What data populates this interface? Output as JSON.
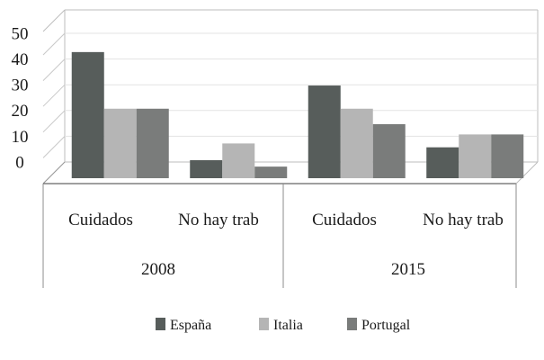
{
  "chart_data": {
    "type": "bar",
    "title": "",
    "xlabel": "",
    "ylabel": "",
    "ylim": [
      0,
      50
    ],
    "yticks": [
      "50",
      "40",
      "30",
      "20",
      "10",
      "0"
    ],
    "groups": [
      {
        "label": "2008",
        "categories": [
          "Cuidados",
          "No hay trab"
        ]
      },
      {
        "label": "2015",
        "categories": [
          "Cuidados",
          "No hay trab"
        ]
      }
    ],
    "categories": [
      "Cuidados",
      "No hay trab",
      "Cuidados",
      "No hay trab"
    ],
    "series": [
      {
        "name": "España",
        "color": "#575d5b",
        "values": [
          49,
          7,
          36,
          12
        ]
      },
      {
        "name": "Italia",
        "color": "#b5b5b5",
        "values": [
          27,
          13.5,
          27,
          17
        ]
      },
      {
        "name": "Portugal",
        "color": "#7a7c7b",
        "values": [
          27,
          4.5,
          21,
          17
        ]
      }
    ],
    "legend_position": "bottom"
  }
}
